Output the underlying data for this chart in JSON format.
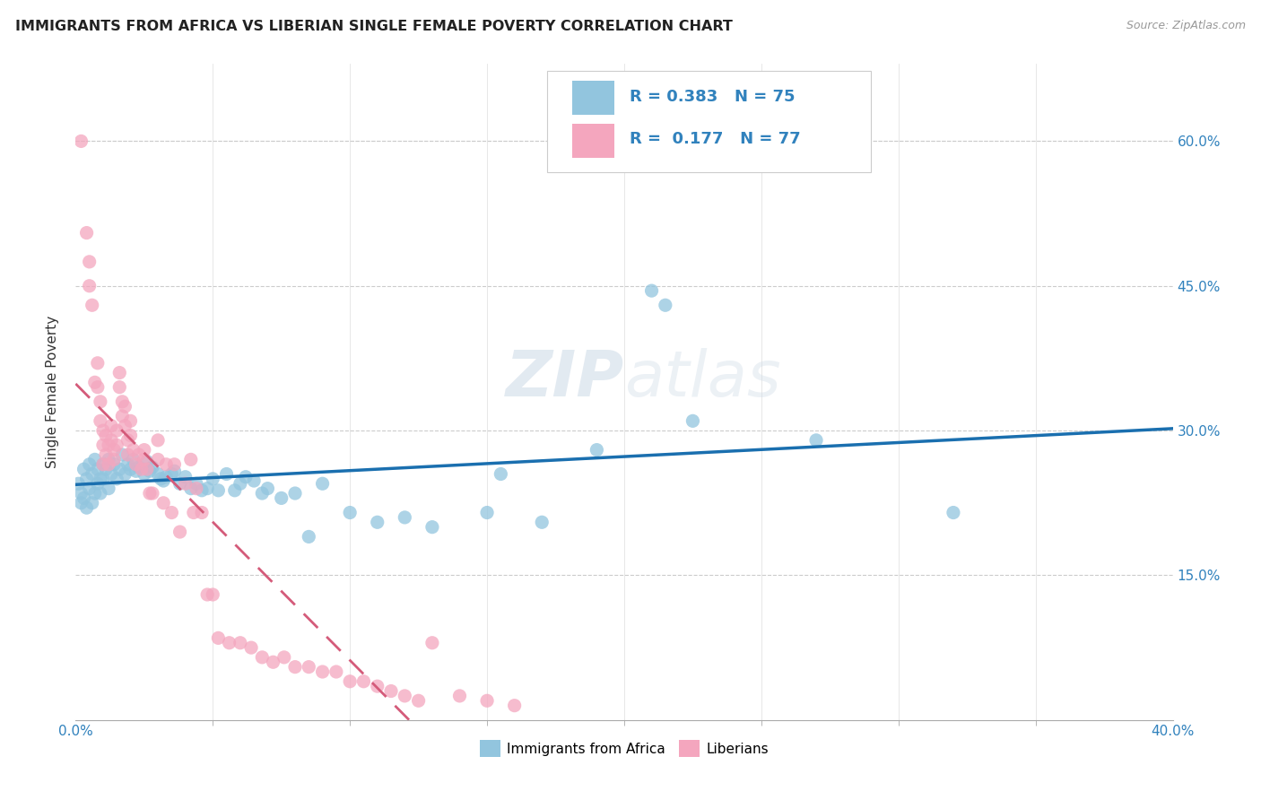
{
  "title": "IMMIGRANTS FROM AFRICA VS LIBERIAN SINGLE FEMALE POVERTY CORRELATION CHART",
  "source": "Source: ZipAtlas.com",
  "ylabel": "Single Female Poverty",
  "legend_label1": "Immigrants from Africa",
  "legend_label2": "Liberians",
  "legend_R1": "0.383",
  "legend_N1": "75",
  "legend_R2": "0.177",
  "legend_N2": "77",
  "color_blue": "#92c5de",
  "color_pink": "#f4a6be",
  "color_line_blue": "#1a6faf",
  "color_line_pink": "#d45b7a",
  "color_text_blue": "#3182bd",
  "watermark": "ZIPatlas",
  "xlim": [
    0.0,
    0.4
  ],
  "ylim": [
    0.0,
    0.68
  ],
  "ytick_positions": [
    0.15,
    0.3,
    0.45,
    0.6
  ],
  "ytick_labels": [
    "15.0%",
    "30.0%",
    "45.0%",
    "60.0%"
  ],
  "blue_points": [
    [
      0.001,
      0.245
    ],
    [
      0.002,
      0.235
    ],
    [
      0.002,
      0.225
    ],
    [
      0.003,
      0.26
    ],
    [
      0.003,
      0.23
    ],
    [
      0.004,
      0.25
    ],
    [
      0.004,
      0.22
    ],
    [
      0.005,
      0.265
    ],
    [
      0.005,
      0.24
    ],
    [
      0.006,
      0.255
    ],
    [
      0.006,
      0.225
    ],
    [
      0.007,
      0.27
    ],
    [
      0.007,
      0.235
    ],
    [
      0.008,
      0.26
    ],
    [
      0.008,
      0.245
    ],
    [
      0.009,
      0.25
    ],
    [
      0.009,
      0.235
    ],
    [
      0.01,
      0.265
    ],
    [
      0.01,
      0.25
    ],
    [
      0.011,
      0.26
    ],
    [
      0.012,
      0.27
    ],
    [
      0.012,
      0.24
    ],
    [
      0.013,
      0.255
    ],
    [
      0.014,
      0.265
    ],
    [
      0.015,
      0.25
    ],
    [
      0.016,
      0.26
    ],
    [
      0.017,
      0.275
    ],
    [
      0.018,
      0.255
    ],
    [
      0.019,
      0.265
    ],
    [
      0.02,
      0.26
    ],
    [
      0.021,
      0.27
    ],
    [
      0.022,
      0.258
    ],
    [
      0.023,
      0.262
    ],
    [
      0.025,
      0.255
    ],
    [
      0.026,
      0.268
    ],
    [
      0.027,
      0.258
    ],
    [
      0.028,
      0.262
    ],
    [
      0.03,
      0.255
    ],
    [
      0.031,
      0.25
    ],
    [
      0.032,
      0.248
    ],
    [
      0.033,
      0.252
    ],
    [
      0.035,
      0.255
    ],
    [
      0.036,
      0.258
    ],
    [
      0.038,
      0.245
    ],
    [
      0.04,
      0.252
    ],
    [
      0.042,
      0.24
    ],
    [
      0.044,
      0.245
    ],
    [
      0.046,
      0.238
    ],
    [
      0.048,
      0.24
    ],
    [
      0.05,
      0.25
    ],
    [
      0.052,
      0.238
    ],
    [
      0.055,
      0.255
    ],
    [
      0.058,
      0.238
    ],
    [
      0.06,
      0.245
    ],
    [
      0.062,
      0.252
    ],
    [
      0.065,
      0.248
    ],
    [
      0.068,
      0.235
    ],
    [
      0.07,
      0.24
    ],
    [
      0.075,
      0.23
    ],
    [
      0.08,
      0.235
    ],
    [
      0.085,
      0.19
    ],
    [
      0.09,
      0.245
    ],
    [
      0.1,
      0.215
    ],
    [
      0.11,
      0.205
    ],
    [
      0.12,
      0.21
    ],
    [
      0.13,
      0.2
    ],
    [
      0.15,
      0.215
    ],
    [
      0.155,
      0.255
    ],
    [
      0.17,
      0.205
    ],
    [
      0.19,
      0.28
    ],
    [
      0.21,
      0.445
    ],
    [
      0.215,
      0.43
    ],
    [
      0.225,
      0.31
    ],
    [
      0.27,
      0.29
    ],
    [
      0.32,
      0.215
    ]
  ],
  "pink_points": [
    [
      0.002,
      0.6
    ],
    [
      0.004,
      0.505
    ],
    [
      0.005,
      0.475
    ],
    [
      0.005,
      0.45
    ],
    [
      0.006,
      0.43
    ],
    [
      0.007,
      0.35
    ],
    [
      0.008,
      0.37
    ],
    [
      0.008,
      0.345
    ],
    [
      0.009,
      0.33
    ],
    [
      0.009,
      0.31
    ],
    [
      0.01,
      0.3
    ],
    [
      0.01,
      0.285
    ],
    [
      0.01,
      0.265
    ],
    [
      0.011,
      0.295
    ],
    [
      0.011,
      0.275
    ],
    [
      0.012,
      0.285
    ],
    [
      0.012,
      0.265
    ],
    [
      0.013,
      0.305
    ],
    [
      0.013,
      0.29
    ],
    [
      0.014,
      0.28
    ],
    [
      0.014,
      0.27
    ],
    [
      0.015,
      0.3
    ],
    [
      0.015,
      0.285
    ],
    [
      0.016,
      0.36
    ],
    [
      0.016,
      0.345
    ],
    [
      0.017,
      0.33
    ],
    [
      0.017,
      0.315
    ],
    [
      0.018,
      0.325
    ],
    [
      0.018,
      0.305
    ],
    [
      0.019,
      0.29
    ],
    [
      0.019,
      0.275
    ],
    [
      0.02,
      0.31
    ],
    [
      0.02,
      0.295
    ],
    [
      0.021,
      0.28
    ],
    [
      0.022,
      0.265
    ],
    [
      0.023,
      0.275
    ],
    [
      0.024,
      0.26
    ],
    [
      0.025,
      0.28
    ],
    [
      0.025,
      0.27
    ],
    [
      0.026,
      0.26
    ],
    [
      0.027,
      0.235
    ],
    [
      0.028,
      0.235
    ],
    [
      0.03,
      0.29
    ],
    [
      0.03,
      0.27
    ],
    [
      0.032,
      0.225
    ],
    [
      0.033,
      0.265
    ],
    [
      0.035,
      0.215
    ],
    [
      0.036,
      0.265
    ],
    [
      0.038,
      0.195
    ],
    [
      0.04,
      0.245
    ],
    [
      0.042,
      0.27
    ],
    [
      0.043,
      0.215
    ],
    [
      0.044,
      0.24
    ],
    [
      0.046,
      0.215
    ],
    [
      0.048,
      0.13
    ],
    [
      0.05,
      0.13
    ],
    [
      0.052,
      0.085
    ],
    [
      0.056,
      0.08
    ],
    [
      0.06,
      0.08
    ],
    [
      0.064,
      0.075
    ],
    [
      0.068,
      0.065
    ],
    [
      0.072,
      0.06
    ],
    [
      0.076,
      0.065
    ],
    [
      0.08,
      0.055
    ],
    [
      0.085,
      0.055
    ],
    [
      0.09,
      0.05
    ],
    [
      0.095,
      0.05
    ],
    [
      0.1,
      0.04
    ],
    [
      0.105,
      0.04
    ],
    [
      0.11,
      0.035
    ],
    [
      0.115,
      0.03
    ],
    [
      0.12,
      0.025
    ],
    [
      0.125,
      0.02
    ],
    [
      0.13,
      0.08
    ],
    [
      0.14,
      0.025
    ],
    [
      0.15,
      0.02
    ],
    [
      0.16,
      0.015
    ]
  ]
}
